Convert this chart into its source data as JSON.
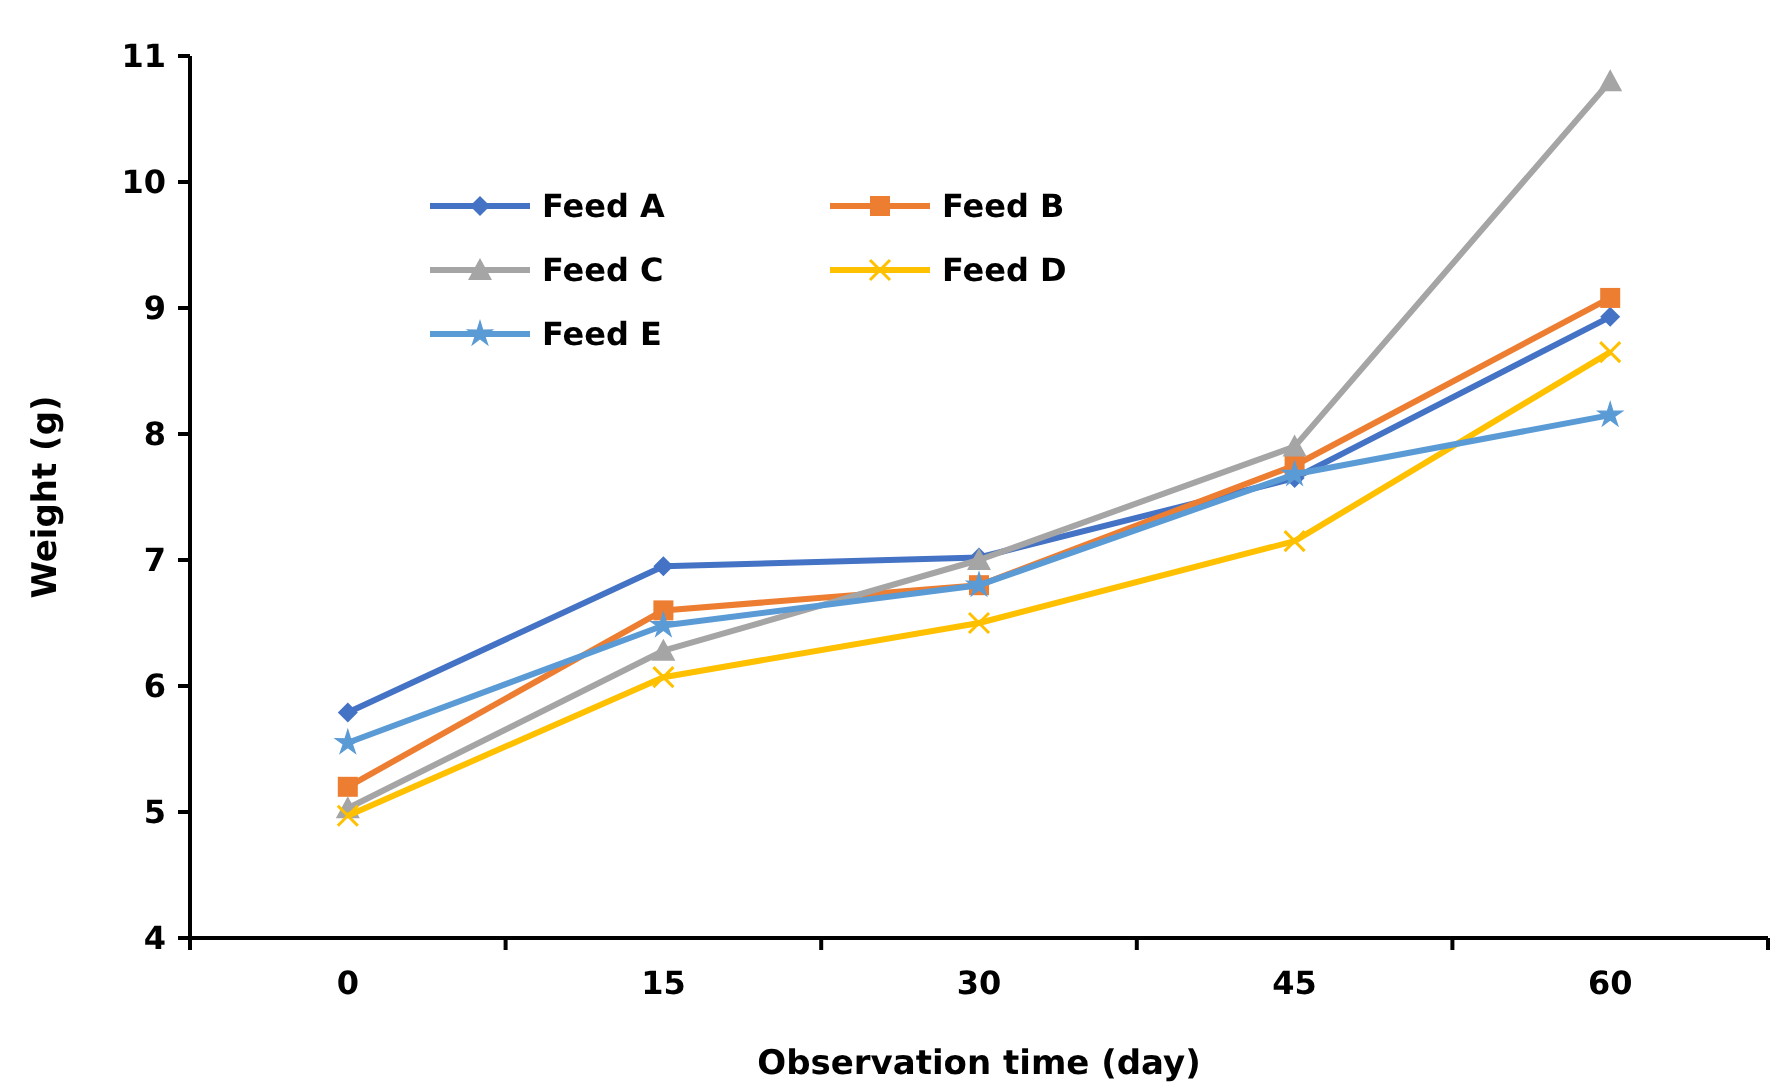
{
  "chart_data": {
    "type": "line",
    "xlabel": "Observation time (day)",
    "ylabel": "Weight (g)",
    "categories": [
      "0",
      "15",
      "30",
      "45",
      "60"
    ],
    "ylim": [
      4,
      11
    ],
    "yticks": [
      4,
      5,
      6,
      7,
      8,
      9,
      10,
      11
    ],
    "grid": false,
    "legend": "top left",
    "line_style": "solid",
    "series": [
      {
        "name": "Feed A",
        "color": "#4472c4",
        "marker": "diamond",
        "values": [
          5.79,
          6.95,
          7.02,
          7.65,
          8.93
        ]
      },
      {
        "name": "Feed B",
        "color": "#ed7d31",
        "marker": "square",
        "values": [
          5.2,
          6.6,
          6.8,
          7.75,
          9.08
        ]
      },
      {
        "name": "Feed C",
        "color": "#a5a5a5",
        "marker": "triangle",
        "values": [
          5.03,
          6.28,
          7.0,
          7.9,
          10.8
        ]
      },
      {
        "name": "Feed D",
        "color": "#ffc000",
        "marker": "cross",
        "values": [
          4.97,
          6.07,
          6.5,
          7.15,
          8.65
        ]
      },
      {
        "name": "Feed E",
        "color": "#5b9bd5",
        "marker": "star",
        "values": [
          5.55,
          6.48,
          6.8,
          7.68,
          8.15
        ]
      }
    ]
  }
}
